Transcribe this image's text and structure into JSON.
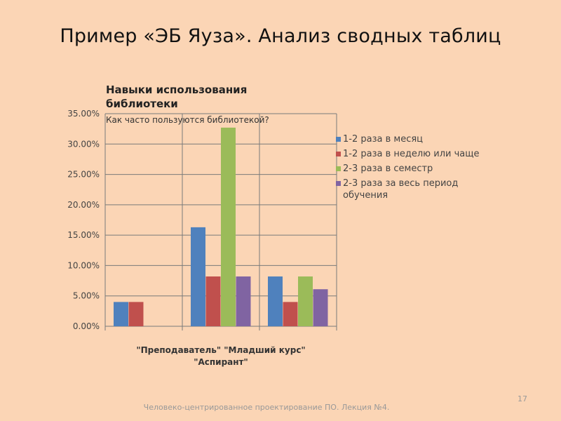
{
  "slide": {
    "title": "Пример «ЭБ Яуза». Анализ сводных таблиц",
    "footer": "Человеко-центрированное проектирование ПО. Лекция №4.",
    "page_number": "17"
  },
  "chart_data": {
    "type": "bar",
    "title_line1": "Навыки использования",
    "title_line2": "библиотеки",
    "subtitle": "Как часто пользуются библиотекой?",
    "categories": [
      "\"Преподаватель\"",
      "\"Аспирант\"",
      "\"Младший курс\""
    ],
    "category_labels_line1": "\"Преподаватель\"    \"Младший курс\"",
    "category_labels_line2": "\"Аспирант\"",
    "ylim": [
      0,
      35
    ],
    "yticks": [
      "0.00%",
      "5.00%",
      "10.00%",
      "15.00%",
      "20.00%",
      "25.00%",
      "30.00%",
      "35.00%"
    ],
    "grid": true,
    "legend_position": "right",
    "series": [
      {
        "name": "1-2 раза в месяц",
        "color": "#4f81bd",
        "values": [
          4,
          16.3,
          8.2
        ]
      },
      {
        "name": "1-2 раза в неделю или чаще",
        "color": "#c0504d",
        "values": [
          4,
          8.2,
          4
        ]
      },
      {
        "name": "2-3 раза в семестр",
        "color": "#9bbb59",
        "values": [
          0,
          32.7,
          8.2
        ]
      },
      {
        "name": "2-3 раза за весь период обучения",
        "color": "#8064a2",
        "values": [
          0,
          8.2,
          6.1
        ]
      }
    ]
  }
}
